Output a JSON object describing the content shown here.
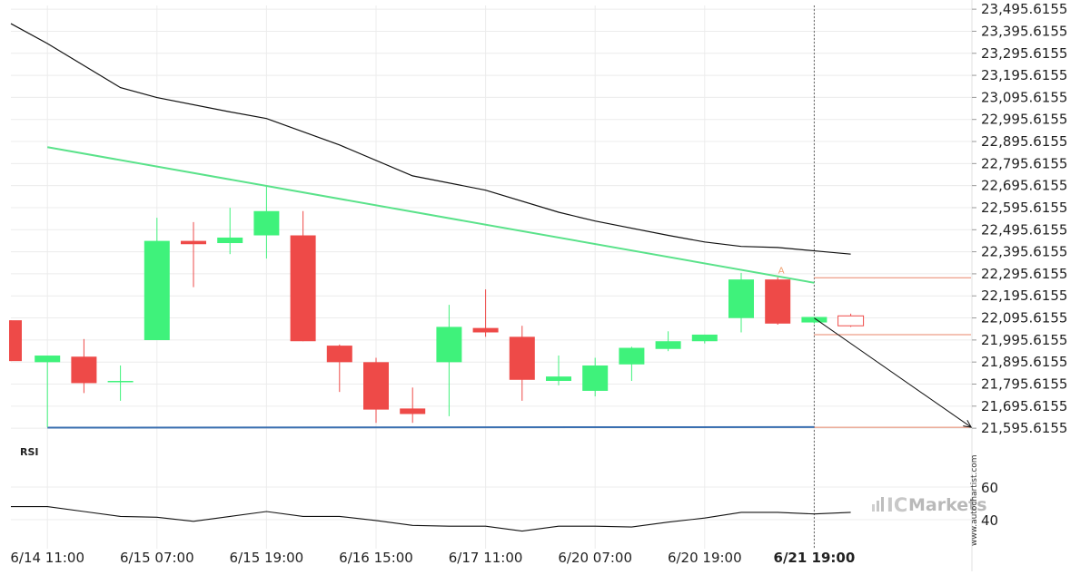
{
  "chart_data": {
    "type": "candlestick",
    "price_axis": {
      "ticks": [
        "23,495.6155",
        "23,395.6155",
        "23,295.6155",
        "23,195.6155",
        "23,095.6155",
        "22,995.6155",
        "22,895.6155",
        "22,795.6155",
        "22,695.6155",
        "22,595.6155",
        "22,495.6155",
        "22,395.6155",
        "22,295.6155",
        "22,195.6155",
        "22,095.6155",
        "21,995.6155",
        "21,895.6155",
        "21,795.6155",
        "21,695.6155",
        "21,595.6155"
      ],
      "min": 21538.6,
      "max": 23512.6
    },
    "x_axis": {
      "ticks": [
        {
          "index": 1,
          "label": "6/14 11:00"
        },
        {
          "index": 4,
          "label": "6/15 07:00"
        },
        {
          "index": 7,
          "label": "6/15 19:00"
        },
        {
          "index": 10,
          "label": "6/16 15:00"
        },
        {
          "index": 13,
          "label": "6/17 11:00"
        },
        {
          "index": 16,
          "label": "6/20 07:00"
        },
        {
          "index": 19,
          "label": "6/20 19:00"
        },
        {
          "index": 22,
          "label": "6/21 19:00",
          "bold": true
        }
      ]
    },
    "candles": [
      {
        "o": 22085,
        "h": 22085,
        "l": 21900,
        "c": 21900
      },
      {
        "o": 21895,
        "h": 21925,
        "l": 21600,
        "c": 21925
      },
      {
        "o": 21920,
        "h": 22000,
        "l": 21755,
        "c": 21800
      },
      {
        "o": 21810,
        "h": 21880,
        "l": 21720,
        "c": 21810
      },
      {
        "o": 21995,
        "h": 22550,
        "l": 21995,
        "c": 22445
      },
      {
        "o": 22445,
        "h": 22530,
        "l": 22235,
        "c": 22430
      },
      {
        "o": 22435,
        "h": 22595,
        "l": 22385,
        "c": 22460
      },
      {
        "o": 22470,
        "h": 22690,
        "l": 22365,
        "c": 22580
      },
      {
        "o": 22470,
        "h": 22580,
        "l": 21990,
        "c": 21990
      },
      {
        "o": 21970,
        "h": 21975,
        "l": 21760,
        "c": 21895
      },
      {
        "o": 21895,
        "h": 21915,
        "l": 21620,
        "c": 21680
      },
      {
        "o": 21685,
        "h": 21780,
        "l": 21620,
        "c": 21660
      },
      {
        "o": 21895,
        "h": 22155,
        "l": 21650,
        "c": 22055
      },
      {
        "o": 22050,
        "h": 22225,
        "l": 22010,
        "c": 22030
      },
      {
        "o": 22010,
        "h": 22060,
        "l": 21720,
        "c": 21815
      },
      {
        "o": 21810,
        "h": 21925,
        "l": 21790,
        "c": 21830
      },
      {
        "o": 21765,
        "h": 21915,
        "l": 21740,
        "c": 21880
      },
      {
        "o": 21885,
        "h": 21965,
        "l": 21810,
        "c": 21960
      },
      {
        "o": 21955,
        "h": 22035,
        "l": 21945,
        "c": 21990
      },
      {
        "o": 21990,
        "h": 22020,
        "l": 21980,
        "c": 22020
      },
      {
        "o": 22095,
        "h": 22300,
        "l": 22030,
        "c": 22270
      },
      {
        "o": 22270,
        "h": 22280,
        "l": 22065,
        "c": 22070
      },
      {
        "o": 22075,
        "h": 22100,
        "l": 22070,
        "c": 22100
      },
      {
        "o": 22105,
        "h": 22115,
        "l": 22055,
        "c": 22060,
        "projected": true
      }
    ],
    "pattern_lines": {
      "resistance": {
        "color": "#5ae28a",
        "from": {
          "index": 1,
          "price": 22870
        },
        "to": {
          "index": 22,
          "price": 22255
        }
      },
      "support": {
        "color": "#3a6fb0",
        "from": {
          "index": 1,
          "price": 21598
        },
        "to": {
          "index": 22,
          "price": 21601
        }
      },
      "upper_band": {
        "color": "#111111",
        "points": [
          [
            0,
            23430
          ],
          [
            1,
            23340
          ],
          [
            3,
            23140
          ],
          [
            4,
            23095
          ],
          [
            6,
            23030
          ],
          [
            7,
            23000
          ],
          [
            9,
            22880
          ],
          [
            11,
            22740
          ],
          [
            13,
            22675
          ],
          [
            15,
            22575
          ],
          [
            16,
            22535
          ],
          [
            18,
            22470
          ],
          [
            19,
            22440
          ],
          [
            20,
            22420
          ],
          [
            21,
            22415
          ],
          [
            22,
            22400
          ],
          [
            23,
            22385
          ]
        ]
      },
      "forecast_arrow": {
        "color": "#111111",
        "from": {
          "index": 22,
          "price": 22095
        },
        "to": {
          "index": 26,
          "price": 21600
        }
      }
    },
    "levels": [
      {
        "price": 22278,
        "color": "#e8866a"
      },
      {
        "price": 22020,
        "color": "#e8866a"
      },
      {
        "price": 21600,
        "color": "#e8866a"
      }
    ],
    "marker": {
      "index": 21,
      "price": 22290,
      "label": "A",
      "color": "#f0a070"
    },
    "cursor_index": 22,
    "rsi": {
      "label": "RSI",
      "ticks": [
        "60",
        "40"
      ],
      "tick_values": [
        60,
        40
      ],
      "values": [
        48,
        48,
        45,
        42,
        41.5,
        39,
        42,
        45,
        42,
        42,
        39.5,
        36.5,
        36,
        36,
        33,
        36,
        36,
        35.5,
        38.5,
        41,
        44.5,
        44.5,
        43.5,
        44.5
      ]
    }
  },
  "branding": {
    "ic": "IC",
    "markets": "Markets",
    "credit": "www.autochartist.com"
  }
}
